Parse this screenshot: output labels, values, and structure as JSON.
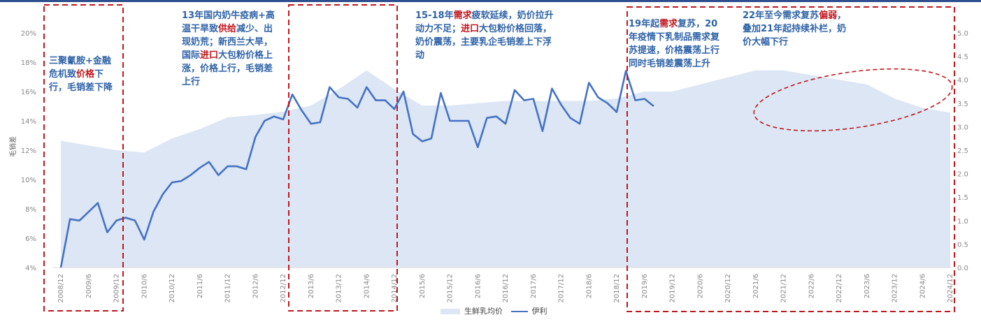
{
  "chart_data": {
    "type": "line+area",
    "ylabel": "毛销差",
    "left_axis": {
      "ticks": [
        "4%",
        "6%",
        "8%",
        "10%",
        "12%",
        "14%",
        "16%",
        "18%",
        "20%"
      ],
      "ylim": [
        4,
        21
      ]
    },
    "right_axis": {
      "ticks": [
        "0.0",
        "0.5",
        "1.0",
        "1.5",
        "2.0",
        "2.5",
        "3.0",
        "3.5",
        "4.0",
        "4.5",
        "5.0"
      ],
      "ylim": [
        0,
        5.25
      ]
    },
    "x_labels": [
      "2008/12",
      "2009/6",
      "2009/12",
      "2010/6",
      "2010/12",
      "2011/6",
      "2011/12",
      "2012/6",
      "2012/12",
      "2013/6",
      "2013/12",
      "2014/6",
      "2014/12",
      "2015/6",
      "2015/12",
      "2016/6",
      "2016/12",
      "2017/6",
      "2017/12",
      "2018/6",
      "2018/12",
      "2019/6",
      "2019/12",
      "2020/6",
      "2020/12",
      "2021/6",
      "2021/12",
      "2022/6",
      "2022/12",
      "2023/6",
      "2023/12",
      "2024/6",
      "2024/12"
    ],
    "series": [
      {
        "name": "伊利",
        "axis": "left",
        "type": "line",
        "color": "#4472c4",
        "values": [
          4.0,
          7.3,
          7.2,
          7.8,
          8.4,
          6.4,
          7.2,
          7.4,
          7.2,
          5.9,
          7.8,
          9.0,
          9.8,
          9.9,
          10.3,
          10.8,
          11.2,
          10.3,
          10.9,
          10.9,
          10.7,
          12.9,
          14.0,
          14.3,
          14.1,
          15.8,
          14.7,
          13.8,
          13.9,
          16.3,
          15.6,
          15.5,
          14.9,
          16.3,
          15.4,
          15.4,
          14.8,
          16.0,
          13.1,
          12.6,
          12.8,
          15.9,
          14.0,
          14.0,
          14.0,
          12.2,
          14.2,
          14.3,
          13.8,
          16.1,
          15.4,
          15.5,
          13.3,
          16.2,
          15.1,
          14.2,
          13.8,
          16.6,
          15.6,
          15.2,
          14.6,
          17.4,
          15.4,
          15.5,
          15.0
        ],
        "x_pos": [
          0,
          0.33,
          0.67,
          1.0,
          1.33,
          1.67,
          2.0,
          2.33,
          2.67,
          3.0,
          3.33,
          3.67,
          4.0,
          4.33,
          4.67,
          5.0,
          5.33,
          5.67,
          6.0,
          6.33,
          6.67,
          7.0,
          7.33,
          7.67,
          8.0,
          8.33,
          8.67,
          9.0,
          9.33,
          9.67,
          10.0,
          10.33,
          10.67,
          11.0,
          11.33,
          11.67,
          12.0,
          12.33,
          12.67,
          13.0,
          13.33,
          13.67,
          14.0,
          14.33,
          14.67,
          15.0,
          15.33,
          15.67,
          16.0,
          16.33,
          16.67,
          17.0,
          17.33,
          17.67,
          18.0,
          18.33,
          18.67,
          19.0,
          19.33,
          19.67,
          20.0,
          20.33,
          20.67,
          21.0,
          21.33
        ]
      },
      {
        "name": "生鲜乳均价",
        "axis": "right",
        "type": "area",
        "color": "#dce6f4",
        "values": [
          2.7,
          2.5,
          2.45,
          2.75,
          2.95,
          3.2,
          3.25,
          3.32,
          3.45,
          3.8,
          4.2,
          3.8,
          3.45,
          3.45,
          3.5,
          3.55,
          3.55,
          3.55,
          3.55,
          3.6,
          3.75,
          3.75,
          4.05,
          4.2,
          4.2,
          4.1,
          4.0,
          3.9,
          3.6,
          3.4,
          3.3,
          3.15
        ],
        "x_idx": [
          0,
          2,
          3,
          4,
          5,
          6,
          7,
          8,
          9,
          10,
          11,
          12,
          13,
          14,
          15,
          16,
          17,
          18,
          19,
          20,
          21,
          22,
          24,
          25,
          26,
          27,
          28,
          29,
          30,
          31,
          32,
          32
        ]
      }
    ],
    "annotations": [
      {
        "segments": [
          {
            "t": "三聚氰胺+金融危机致"
          },
          {
            "t": "价格",
            "red": true
          },
          {
            "t": "下行，毛销差下降"
          }
        ]
      },
      {
        "segments": [
          {
            "t": "13年国内奶牛疫病+高温干旱致"
          },
          {
            "t": "供给",
            "red": true
          },
          {
            "t": "减少、出现奶荒；新西兰大旱，国际"
          },
          {
            "t": "进口",
            "red": true
          },
          {
            "t": "大包粉价格上涨，价格上行，毛销差上行"
          }
        ]
      },
      {
        "segments": [
          {
            "t": "15-18年"
          },
          {
            "t": "需求",
            "red": true
          },
          {
            "t": "疲软延续，奶价拉升动力不足；"
          },
          {
            "t": "进口",
            "red": true
          },
          {
            "t": "大包粉价格回落，奶价震荡，主要乳企毛销差上下浮动"
          }
        ]
      },
      {
        "segments": [
          {
            "t": "19年起"
          },
          {
            "t": "需求",
            "red": true
          },
          {
            "t": "复苏，20年疫情下乳制品需求复苏提速，价格震荡上行同时毛销差震荡上升"
          }
        ]
      },
      {
        "segments": [
          {
            "t": "22年至今需求复苏"
          },
          {
            "t": "偏弱",
            "red": true
          },
          {
            "t": "，叠加21年起持续补栏，奶价大幅下行"
          }
        ]
      }
    ],
    "legend": [
      "生鲜乳均价",
      "伊利"
    ]
  },
  "colors": {
    "line": "#4472c4",
    "area": "#dce6f4",
    "dash": "#c0161c",
    "annotation": "#2f63a8",
    "highlight": "#c0161c"
  }
}
